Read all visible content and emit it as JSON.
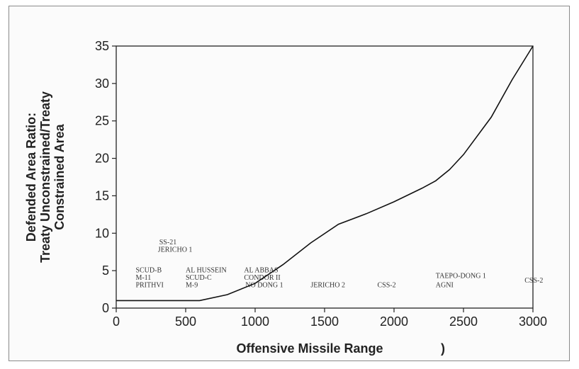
{
  "chart_data": {
    "type": "line",
    "title": "",
    "xlabel": "Offensive Missile Range",
    "xlabel_suffix": ")",
    "ylabel_lines": [
      "Defended Area Ratio:",
      "Treaty Unconstrained/Treaty",
      "Constrained Area"
    ],
    "xlim": [
      0,
      3000
    ],
    "ylim": [
      0,
      35
    ],
    "xticks": [
      0,
      500,
      1000,
      1500,
      2000,
      2500,
      3000
    ],
    "yticks": [
      0,
      5,
      10,
      15,
      20,
      25,
      30,
      35
    ],
    "grid": false,
    "series": [
      {
        "x": [
          0,
          500,
          600,
          800,
          1000,
          1200,
          1400,
          1600,
          1800,
          2000,
          2200,
          2300,
          2400,
          2500,
          2700,
          2850,
          3000
        ],
        "y": [
          1,
          1,
          1,
          1.8,
          3.3,
          5.8,
          8.7,
          11.2,
          12.6,
          14.2,
          16.0,
          17.0,
          18.5,
          20.5,
          25.5,
          30.5,
          35
        ]
      }
    ],
    "annotations": [
      {
        "text": "SS-21",
        "x": 310,
        "y": 8.5
      },
      {
        "text": "JERICHO 1",
        "x": 300,
        "y": 7.5
      },
      {
        "text": "SCUD-B",
        "x": 140,
        "y": 4.8
      },
      {
        "text": "M-11",
        "x": 140,
        "y": 3.8
      },
      {
        "text": "PRITHVI",
        "x": 140,
        "y": 2.8
      },
      {
        "text": "AL HUSSEIN",
        "x": 500,
        "y": 4.8
      },
      {
        "text": "SCUD-C",
        "x": 500,
        "y": 3.8
      },
      {
        "text": "M-9",
        "x": 500,
        "y": 2.8
      },
      {
        "text": "AL ABBAS",
        "x": 920,
        "y": 4.8
      },
      {
        "text": "CONDOR II",
        "x": 920,
        "y": 3.8
      },
      {
        "text": "NO DONG 1",
        "x": 930,
        "y": 2.8
      },
      {
        "text": "JERICHO 2",
        "x": 1400,
        "y": 2.8
      },
      {
        "text": "CSS-2",
        "x": 1880,
        "y": 2.8
      },
      {
        "text": "TAEPO-DONG 1",
        "x": 2300,
        "y": 4.0
      },
      {
        "text": "AGNI",
        "x": 2300,
        "y": 2.8
      },
      {
        "text": "CSS-2",
        "x": 2940,
        "y": 3.4
      }
    ]
  }
}
